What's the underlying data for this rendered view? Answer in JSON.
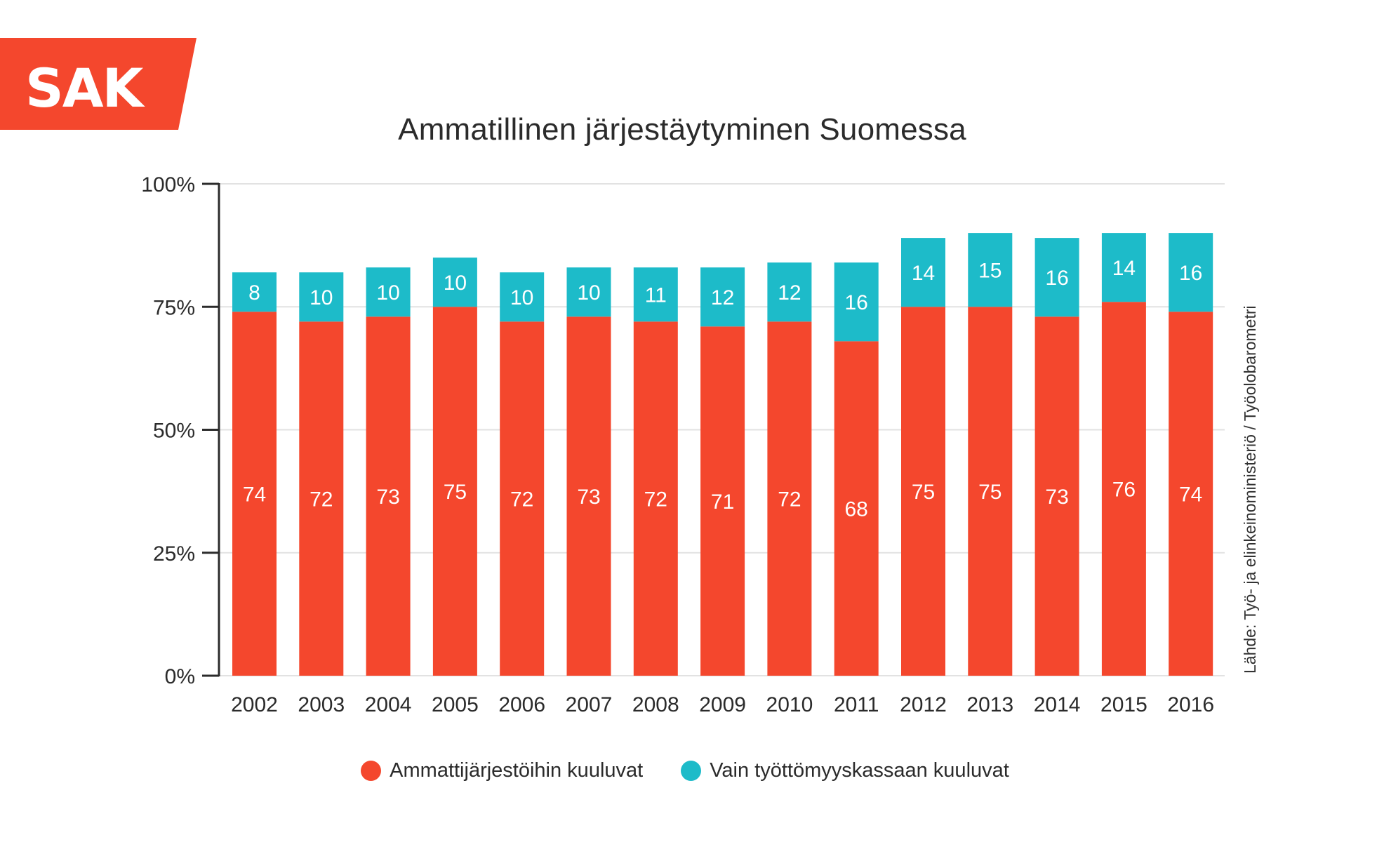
{
  "brand": {
    "logo_text": "SAK",
    "logo_color": "#f4472d"
  },
  "colors": {
    "members": "#f4472d",
    "fund_only": "#1dbbc9",
    "axis": "#2b2b2b",
    "grid": "#e2e2e2",
    "label": "#ffffff"
  },
  "source_note": "Lähde: Työ- ja elinkeinoministeriö / Työolobarometri",
  "chart_data": {
    "type": "bar",
    "stacked": true,
    "title": "Ammatillinen järjestäytyminen Suomessa",
    "xlabel": "",
    "ylabel": "",
    "ylim": [
      0,
      100
    ],
    "yticks": [
      0,
      25,
      50,
      75,
      100
    ],
    "ytick_labels": [
      "0%",
      "25%",
      "50%",
      "75%",
      "100%"
    ],
    "grid": true,
    "legend_position": "bottom",
    "categories": [
      "2002",
      "2003",
      "2004",
      "2005",
      "2006",
      "2007",
      "2008",
      "2009",
      "2010",
      "2011",
      "2012",
      "2013",
      "2014",
      "2015",
      "2016"
    ],
    "series": [
      {
        "name": "Ammattijärjestöihin kuuluvat",
        "color": "#f4472d",
        "values": [
          74,
          72,
          73,
          75,
          72,
          73,
          72,
          71,
          72,
          68,
          75,
          75,
          73,
          76,
          74
        ]
      },
      {
        "name": "Vain työttömyyskassaan kuuluvat",
        "color": "#1dbbc9",
        "values": [
          8,
          10,
          10,
          10,
          10,
          10,
          11,
          12,
          12,
          16,
          14,
          15,
          16,
          14,
          16
        ]
      }
    ]
  }
}
